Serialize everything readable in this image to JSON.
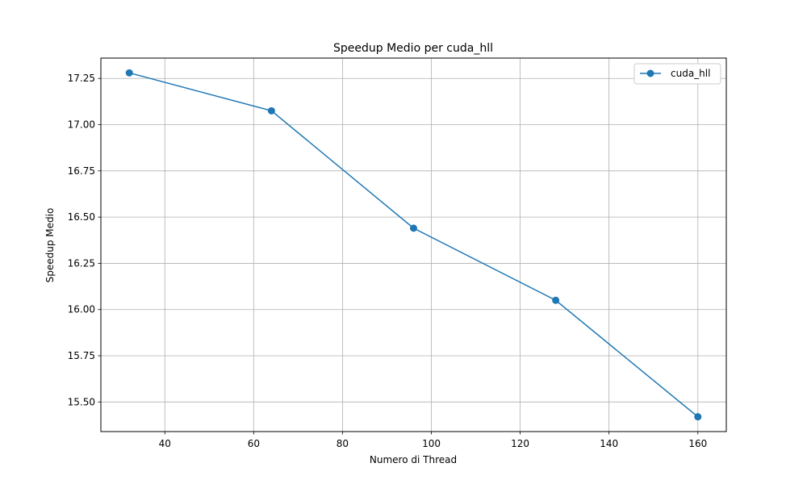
{
  "chart_data": {
    "type": "line",
    "title": "Speedup Medio per cuda_hll",
    "xlabel": "Numero di Thread",
    "ylabel": "Speedup Medio",
    "xlim": [
      25.6,
      166.4
    ],
    "ylim": [
      15.34,
      17.36
    ],
    "xticks": [
      40,
      60,
      80,
      100,
      120,
      140,
      160
    ],
    "xtick_labels": [
      "40",
      "60",
      "80",
      "100",
      "120",
      "140",
      "160"
    ],
    "yticks": [
      15.5,
      15.75,
      16.0,
      16.25,
      16.5,
      16.75,
      17.0,
      17.25
    ],
    "ytick_labels": [
      "15.50",
      "15.75",
      "16.00",
      "16.25",
      "16.50",
      "16.75",
      "17.00",
      "17.25"
    ],
    "grid": true,
    "legend_position": "top-right",
    "series": [
      {
        "name": "cuda_hll",
        "color": "#1f77b4",
        "marker": "circle",
        "x": [
          32,
          64,
          96,
          128,
          160
        ],
        "y": [
          17.28,
          17.075,
          16.44,
          16.05,
          15.42
        ]
      }
    ]
  }
}
